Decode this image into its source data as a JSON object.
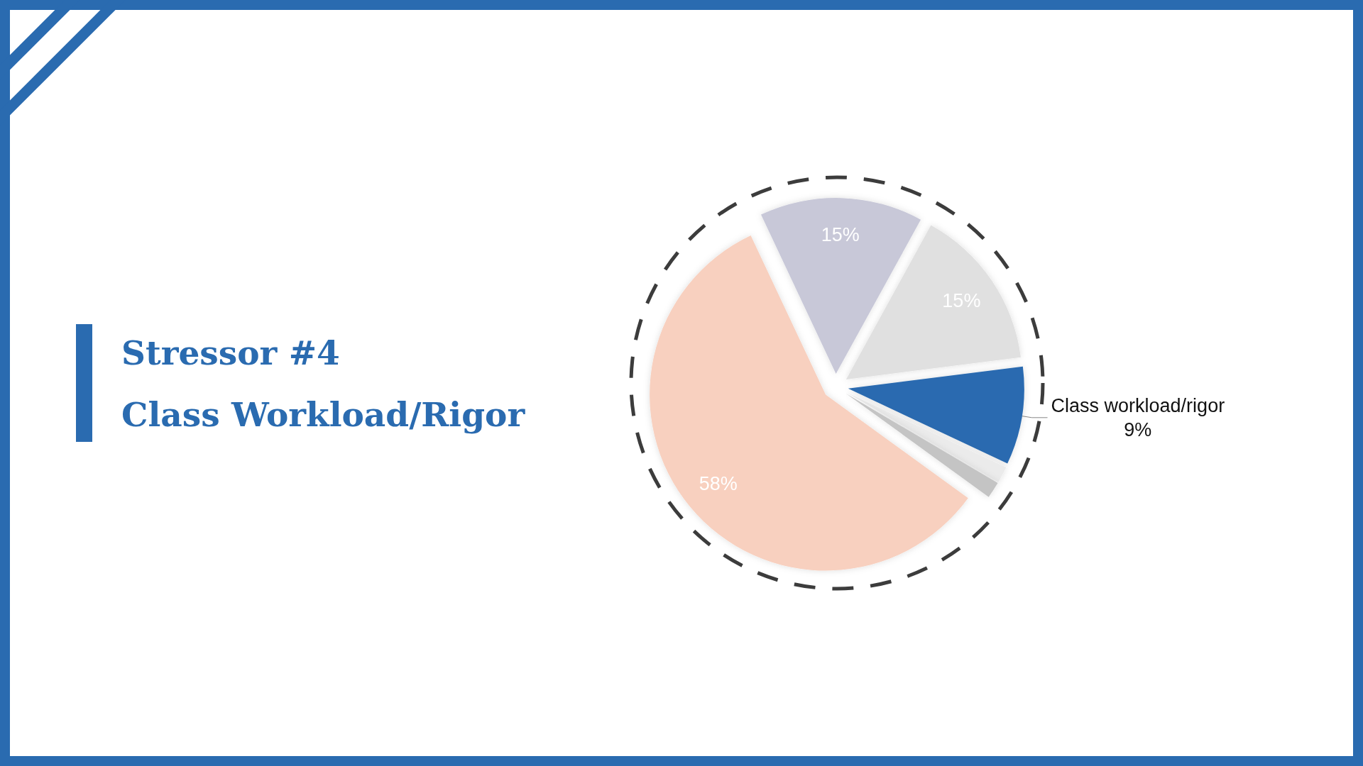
{
  "chart_data": {
    "type": "pie",
    "title": "Stressor #4",
    "subtitle": "Class Workload/Rigor",
    "categories": [
      null,
      null,
      "Class workload/rigor",
      null,
      null,
      null
    ],
    "values": [
      15,
      15,
      9,
      1.5,
      1.5,
      58
    ],
    "colors": [
      "#c8c8d8",
      "#e0e0e0",
      "#2a6bb0",
      "#ebebeb",
      "#c4c4c4",
      "#f8d0bf"
    ],
    "value_labels": [
      "15%",
      "15%",
      "9%",
      null,
      null,
      "58%"
    ]
  }
}
